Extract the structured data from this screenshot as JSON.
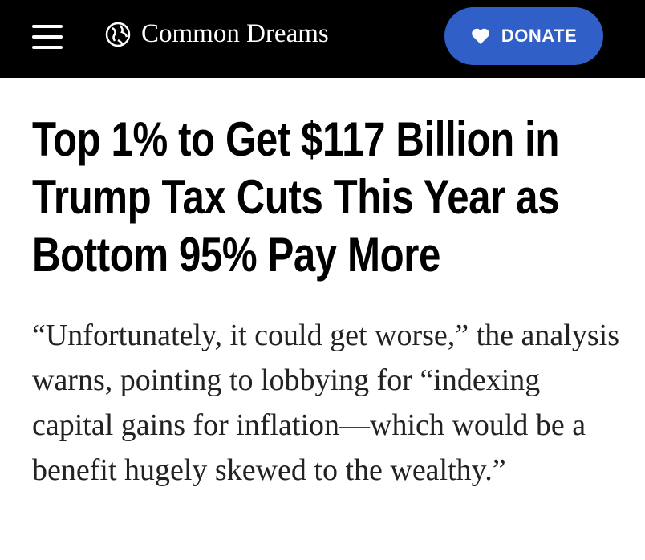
{
  "header": {
    "site_name": "Common Dreams",
    "donate": "DONATE"
  },
  "article": {
    "headline": "Top 1% to Get $117 Billion in Trump Tax Cuts This Year as Bottom 95% Pay More",
    "dek": "“Unfortunately, it could get worse,” the analysis warns, pointing to lobbying for “indexing capital gains for inflation—which would be a benefit hugely skewed to the wealthy.”"
  }
}
